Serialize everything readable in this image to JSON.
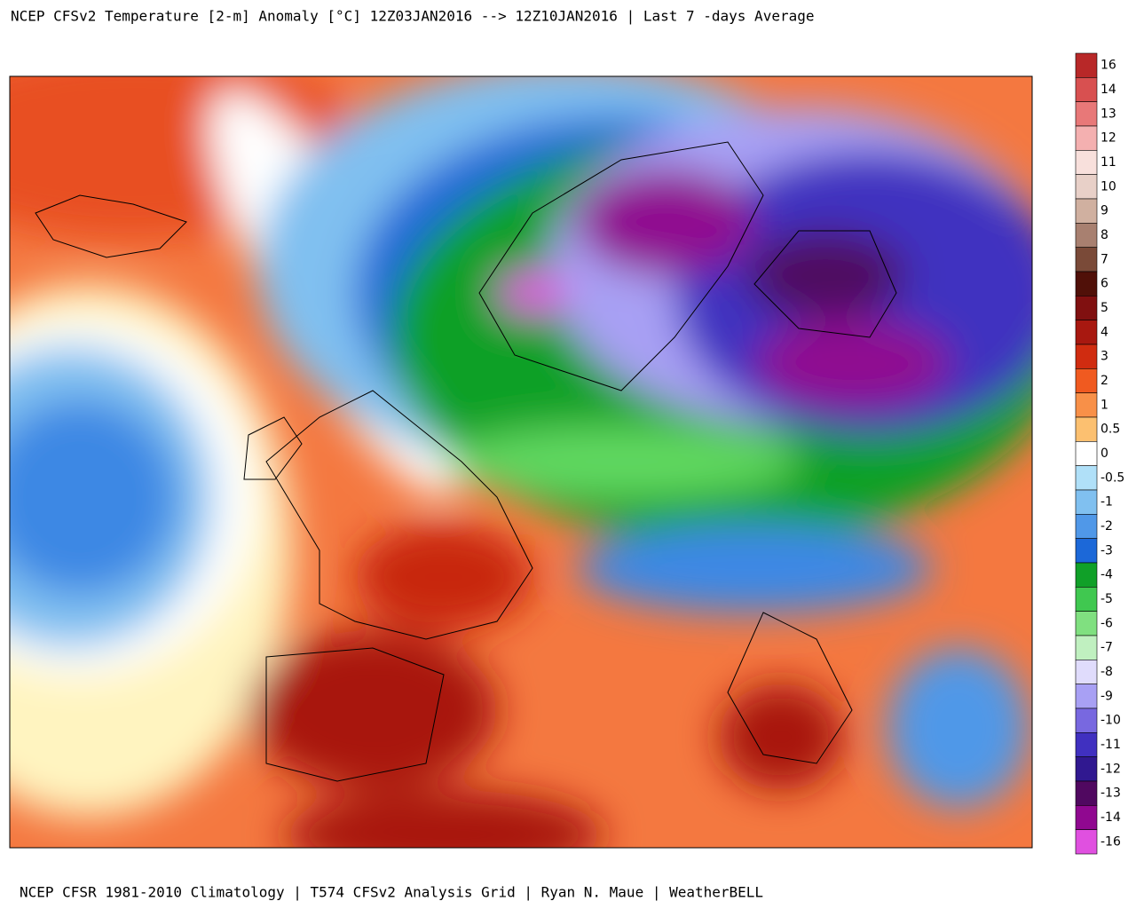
{
  "title": "NCEP CFSv2 Temperature [2-m] Anomaly  [°C] 12Z03JAN2016 --> 12Z10JAN2016 | Last 7 -days Average",
  "footer": "NCEP CFSR 1981-2010 Climatology | T574 CFSv2 Analysis Grid | Ryan N. Maue | WeatherBELL",
  "colorbar": {
    "ticks": [
      16,
      14,
      13,
      12,
      11,
      10,
      9,
      8,
      7,
      6,
      5,
      4,
      3,
      2,
      1,
      0.5,
      0,
      -0.5,
      -1,
      -2,
      -3,
      -4,
      -5,
      -6,
      -7,
      -8,
      -9,
      -10,
      -11,
      -12,
      -13,
      -14,
      -16
    ],
    "colors": [
      "#b82828",
      "#d85050",
      "#e87878",
      "#f4b0b0",
      "#f8e0dc",
      "#e8d0c8",
      "#d0b0a0",
      "#a88070",
      "#7a4a38",
      "#501008",
      "#801010",
      "#a81810",
      "#d02c10",
      "#f05a20",
      "#f89048",
      "#fcc070",
      "#ffffff",
      "#b0e0f8",
      "#80c0f0",
      "#5098e8",
      "#1c68d8",
      "#10a028",
      "#40c850",
      "#80e080",
      "#c0f0c0",
      "#e0dcfc",
      "#a8a0f4",
      "#7868e0",
      "#4030c0",
      "#301890",
      "#500860",
      "#900890",
      "#e050e0"
    ]
  }
}
